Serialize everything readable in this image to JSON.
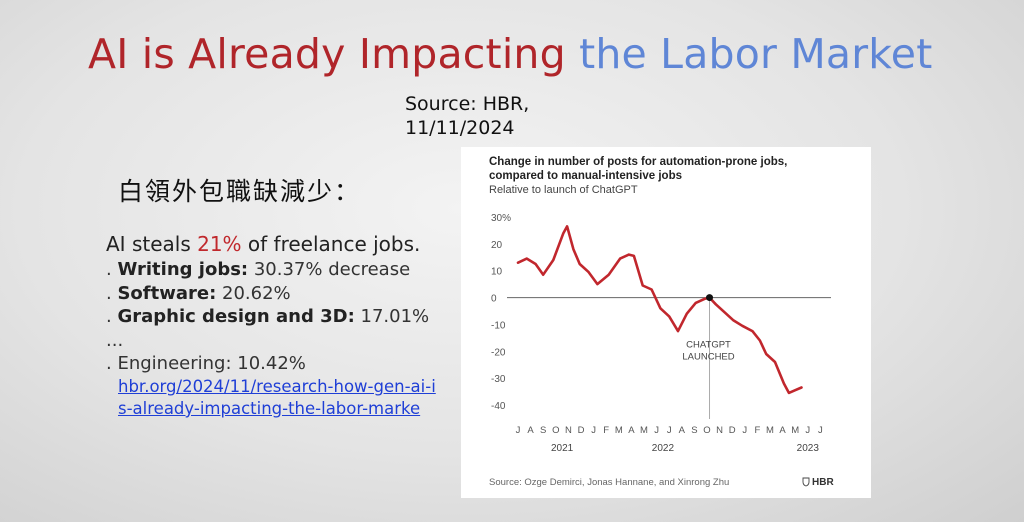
{
  "slide": {
    "title_part1": "AI is Already Impacting",
    "title_part2": "the Labor Market",
    "source_line1": "Source: HBR,",
    "source_line2": "11/11/2024",
    "heading": "白領外包職缺減少：",
    "lead_prefix": "AI steals ",
    "lead_highlight": "21%",
    "lead_suffix": " of freelance jobs.",
    "items": [
      {
        "prefix": ". ",
        "bold": "Writing jobs:",
        "rest": " 30.37% decrease"
      },
      {
        "prefix": ". ",
        "bold": "Software:",
        "rest": " 20.62%"
      },
      {
        "prefix": ". ",
        "bold": "Graphic design and 3D:",
        "rest": " 17.01%"
      },
      {
        "prefix": "...",
        "bold": "",
        "rest": ""
      },
      {
        "prefix": ". ",
        "bold": "",
        "rest": "Engineering: 10.42%"
      }
    ],
    "link_text": "hbr.org/2024/11/research-how-gen-ai-is-already-impacting-the-labor-marke",
    "colors": {
      "title_red": "#b0252a",
      "title_blue": "#5f86d6",
      "highlight": "#c0282c",
      "link": "#1f3fd6"
    }
  },
  "chart_data": {
    "type": "line",
    "title": "Change in number of posts for automation-prone jobs, compared to manual-intensive jobs",
    "subtitle": "Relative to launch of ChatGPT",
    "ylabel": "",
    "xlabel": "",
    "ylim": [
      -40,
      30
    ],
    "y_ticks": [
      "30%",
      "20",
      "10",
      "0",
      "-10",
      "-20",
      "-30",
      "-40"
    ],
    "y_tick_values": [
      30,
      20,
      10,
      0,
      -10,
      -20,
      -30,
      -40
    ],
    "x_month_labels": [
      "J",
      "A",
      "S",
      "O",
      "N",
      "D",
      "J",
      "F",
      "M",
      "A",
      "M",
      "J",
      "J",
      "A",
      "S",
      "O",
      "N",
      "D",
      "J",
      "F",
      "M",
      "A",
      "M",
      "J",
      "J"
    ],
    "x_year_labels": [
      {
        "label": "2021",
        "month_index": 3.5
      },
      {
        "label": "2022",
        "month_index": 11.5
      },
      {
        "label": "2023",
        "month_index": 23
      }
    ],
    "series": [
      {
        "color": "#c1272d",
        "points": [
          [
            0,
            13
          ],
          [
            0.7,
            14.5
          ],
          [
            1.4,
            12.5
          ],
          [
            2,
            8.5
          ],
          [
            2.8,
            14
          ],
          [
            3.6,
            24
          ],
          [
            3.9,
            26.5
          ],
          [
            4.4,
            18
          ],
          [
            4.9,
            12.5
          ],
          [
            5.6,
            9.5
          ],
          [
            6.3,
            5
          ],
          [
            7.2,
            8.5
          ],
          [
            8.1,
            14.5
          ],
          [
            8.8,
            16
          ],
          [
            9.2,
            15.5
          ],
          [
            9.9,
            4.5
          ],
          [
            10.6,
            3
          ],
          [
            11.3,
            -4
          ],
          [
            12,
            -7
          ],
          [
            12.7,
            -12.5
          ],
          [
            13.4,
            -6
          ],
          [
            14.1,
            -2
          ],
          [
            14.8,
            -0.5
          ],
          [
            15.2,
            0
          ],
          [
            15.7,
            -2.5
          ],
          [
            16.4,
            -5.5
          ],
          [
            17.1,
            -8.5
          ],
          [
            17.8,
            -10.5
          ],
          [
            18.6,
            -12.5
          ],
          [
            19.2,
            -16
          ],
          [
            19.7,
            -21
          ],
          [
            20.4,
            -24
          ],
          [
            21.1,
            -32
          ],
          [
            21.5,
            -35.5
          ],
          [
            22,
            -34.5
          ],
          [
            22.5,
            -33.5
          ]
        ]
      }
    ],
    "marker": {
      "x": 15.2,
      "y": 0,
      "label_line1": "CHATGPT",
      "label_line2": "LAUNCHED"
    },
    "grid": false,
    "source": "Source: Ozge Demirci, Jonas Hannane, and Xinrong Zhu",
    "brand": "HBR"
  }
}
